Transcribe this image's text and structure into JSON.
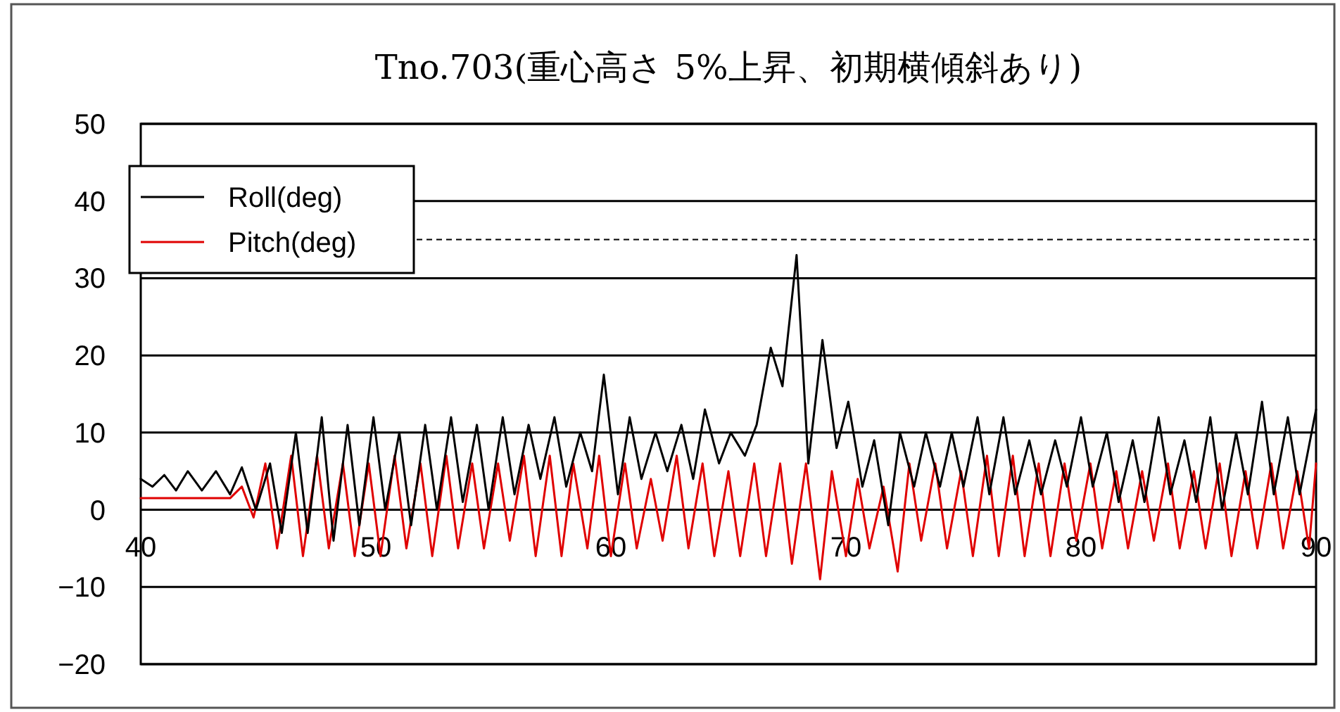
{
  "chart_data": {
    "type": "line",
    "title": "Tno.703(重心高さ 5%上昇、初期横傾斜あり)",
    "xlim": [
      40,
      90
    ],
    "xticks": [
      40,
      50,
      60,
      70,
      80,
      90
    ],
    "ylim": [
      -20,
      50
    ],
    "yticks": [
      -20,
      -10,
      0,
      10,
      20,
      30,
      40,
      50
    ],
    "grid": "y",
    "legend": "top left",
    "line_style": "solid",
    "ref_lines": [
      {
        "axis": "y",
        "value": 35,
        "line_style": "dashed",
        "color": "#000000"
      }
    ],
    "series": [
      {
        "name": "Roll(deg)",
        "color": "#000000",
        "x": [
          40,
          40.5,
          41,
          41.5,
          42,
          42.6,
          43.2,
          43.8,
          44.3,
          44.9,
          45.5,
          46,
          46.6,
          47.1,
          47.7,
          48.2,
          48.8,
          49.3,
          49.9,
          50.4,
          51,
          51.5,
          52.1,
          52.6,
          53.2,
          53.7,
          54.3,
          54.8,
          55.4,
          55.9,
          56.5,
          57,
          57.6,
          58.1,
          58.7,
          59.2,
          59.7,
          60.3,
          60.8,
          61.3,
          61.9,
          62.4,
          63,
          63.5,
          64,
          64.6,
          65.1,
          65.7,
          66.2,
          66.8,
          67.3,
          67.9,
          68.4,
          69,
          69.6,
          70.1,
          70.7,
          71.2,
          71.8,
          72.3,
          72.9,
          73.4,
          74,
          74.5,
          75,
          75.6,
          76.1,
          76.7,
          77.2,
          77.8,
          78.3,
          78.9,
          79.4,
          80,
          80.5,
          81.1,
          81.6,
          82.2,
          82.7,
          83.3,
          83.8,
          84.4,
          84.9,
          85.5,
          86,
          86.6,
          87.1,
          87.7,
          88.2,
          88.8,
          89.3,
          90
        ],
        "values": [
          4,
          3,
          4.5,
          2.5,
          5,
          2.5,
          5,
          2,
          5.5,
          0,
          6,
          -3,
          10,
          -3,
          12,
          -4,
          11,
          -2,
          12,
          0,
          10,
          -2,
          11,
          0,
          12,
          1,
          11,
          0,
          12,
          2,
          11,
          4,
          12,
          3,
          10,
          5,
          17.5,
          2,
          12,
          4,
          10,
          5,
          11,
          4,
          13,
          6,
          10,
          7,
          11,
          21,
          16,
          33,
          6,
          22,
          8,
          14,
          3,
          9,
          -2,
          10,
          3,
          10,
          3,
          10,
          3,
          12,
          2,
          12,
          2,
          9,
          2,
          9,
          3,
          12,
          3,
          10,
          1,
          9,
          1,
          12,
          2,
          9,
          1,
          12,
          0,
          10,
          2,
          14,
          2,
          12,
          2,
          13
        ]
      },
      {
        "name": "Pitch(deg)",
        "color": "#e00000",
        "x": [
          40,
          41,
          42,
          43,
          43.8,
          44.3,
          44.8,
          45.3,
          45.8,
          46.4,
          46.9,
          47.5,
          48,
          48.6,
          49.1,
          49.7,
          50.2,
          50.8,
          51.3,
          51.9,
          52.4,
          53,
          53.5,
          54.1,
          54.6,
          55.2,
          55.7,
          56.3,
          56.8,
          57.4,
          57.9,
          58.4,
          59,
          59.5,
          60,
          60.6,
          61.1,
          61.7,
          62.2,
          62.8,
          63.3,
          63.9,
          64.4,
          65,
          65.5,
          66.1,
          66.6,
          67.2,
          67.7,
          68.3,
          68.9,
          69.4,
          70,
          70.5,
          71,
          71.6,
          72.2,
          72.7,
          73.2,
          73.8,
          74.3,
          74.9,
          75.4,
          76,
          76.5,
          77.1,
          77.6,
          78.2,
          78.7,
          79.3,
          79.8,
          80.4,
          80.9,
          81.5,
          82,
          82.6,
          83.1,
          83.7,
          84.2,
          84.8,
          85.3,
          85.9,
          86.4,
          87,
          87.5,
          88.1,
          88.6,
          89.2,
          89.7,
          90
        ],
        "values": [
          1.5,
          1.5,
          1.5,
          1.5,
          1.5,
          3,
          -1,
          6,
          -5,
          7,
          -6,
          7,
          -5,
          6,
          -6,
          6,
          -6,
          7,
          -5,
          6,
          -6,
          7,
          -5,
          6,
          -5,
          6,
          -4,
          7,
          -6,
          7,
          -6,
          6,
          -5,
          7,
          -6,
          6,
          -5,
          4,
          -4,
          7,
          -5,
          6,
          -6,
          5,
          -6,
          6,
          -6,
          6,
          -7,
          6,
          -9,
          5,
          -6,
          4,
          -5,
          3,
          -8,
          6,
          -4,
          6,
          -5,
          5,
          -6,
          7,
          -6,
          7,
          -6,
          6,
          -6,
          6,
          -4,
          6,
          -5,
          5,
          -5,
          5,
          -4,
          6,
          -5,
          5,
          -5,
          6,
          -6,
          5,
          -5,
          6,
          -5,
          5,
          -5,
          6
        ]
      }
    ]
  }
}
